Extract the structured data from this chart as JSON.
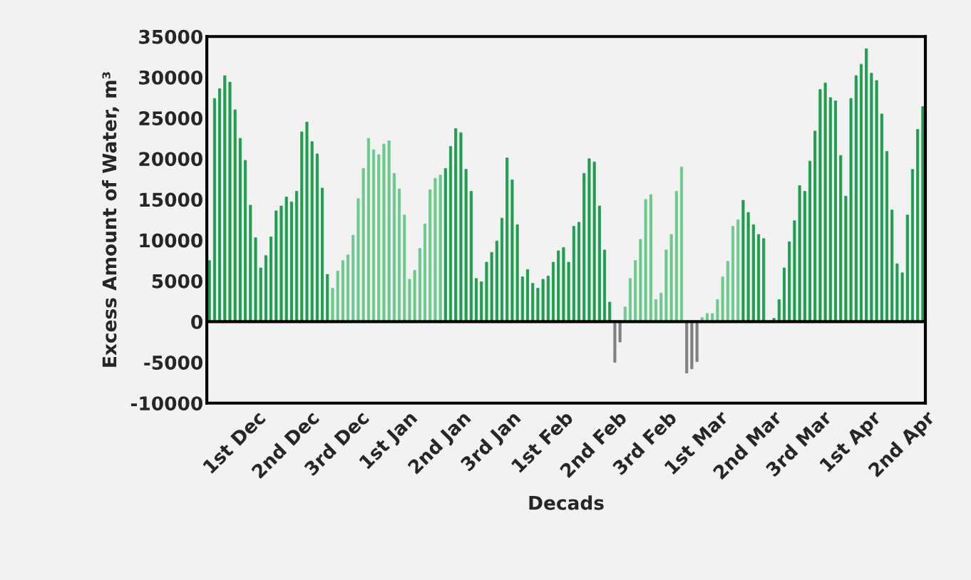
{
  "chart_data": {
    "type": "bar",
    "xlabel": "Decads",
    "ylabel": "Excess Amount of Water, m³",
    "categories": [
      null,
      null,
      null,
      null,
      null,
      "1st Dec",
      null,
      null,
      null,
      null,
      null,
      null,
      null,
      null,
      null,
      "2nd Dec",
      null,
      null,
      null,
      null,
      null,
      null,
      null,
      null,
      null,
      "3rd Dec",
      null,
      null,
      null,
      null,
      null,
      null,
      null,
      null,
      null,
      "1st Jan",
      null,
      null,
      null,
      null,
      null,
      null,
      null,
      null,
      null,
      "2nd Jan",
      null,
      null,
      null,
      null,
      null,
      null,
      null,
      null,
      null,
      "3rd Jan",
      null,
      null,
      null,
      null,
      null,
      null,
      null,
      null,
      null,
      "1st Feb",
      null,
      null,
      null,
      null,
      null,
      null,
      null,
      null,
      null,
      "2nd Feb",
      null,
      null,
      null,
      null,
      null,
      null,
      null,
      null,
      null,
      "3rd Feb",
      null,
      null,
      null,
      null,
      null,
      null,
      null,
      null,
      null,
      "1st Mar",
      null,
      null,
      null,
      null,
      null,
      null,
      null,
      null,
      null,
      "2nd Mar",
      null,
      null,
      null,
      null,
      null,
      null,
      null,
      null,
      null,
      "3rd Mar",
      null,
      null,
      null,
      null,
      null,
      null,
      null,
      null,
      null,
      "1st Apr",
      null,
      null,
      null,
      null,
      null,
      null,
      null,
      null,
      null,
      "2nd Apr",
      null,
      null,
      null,
      null
    ],
    "values": [
      7500,
      27400,
      28600,
      30200,
      29400,
      26000,
      22500,
      19800,
      14300,
      10300,
      6600,
      8100,
      10400,
      13600,
      14200,
      15300,
      14700,
      16000,
      23300,
      24500,
      22100,
      20600,
      16400,
      5800,
      4100,
      6200,
      7500,
      8200,
      10600,
      15100,
      18800,
      22500,
      21100,
      20500,
      21800,
      22200,
      18200,
      16300,
      13100,
      5200,
      6300,
      9000,
      12000,
      16200,
      17600,
      18000,
      18800,
      21500,
      23700,
      23200,
      18700,
      16000,
      5300,
      4900,
      7300,
      8500,
      9900,
      12700,
      20100,
      17400,
      11900,
      5500,
      6400,
      4700,
      4100,
      5200,
      5600,
      7300,
      8700,
      9100,
      7300,
      11700,
      12200,
      18200,
      20000,
      19600,
      14200,
      8800,
      2400,
      -5000,
      -2500,
      1800,
      5300,
      7500,
      10100,
      15000,
      15600,
      2700,
      3500,
      8800,
      10700,
      16000,
      19000,
      -6300,
      -5800,
      -4900,
      500,
      1000,
      1000,
      2700,
      5500,
      7400,
      11700,
      12500,
      14900,
      13400,
      11900,
      10700,
      10200,
      0,
      400,
      2700,
      6600,
      9800,
      12400,
      16700,
      16000,
      19700,
      23400,
      28500,
      29300,
      27500,
      27100,
      20400,
      15400,
      27400,
      30200,
      31600,
      33500,
      30500,
      29600,
      25500,
      20900,
      13700,
      7100,
      6000,
      13100,
      18700,
      23600,
      26400
    ],
    "colors": [
      "#1e9e4e",
      "#1e9e4e",
      "#1e9e4e",
      "#1e9e4e",
      "#1e9e4e",
      "#1e9e4e",
      "#1e9e4e",
      "#1e9e4e",
      "#1e9e4e",
      "#1e9e4e",
      "#1e9e4e",
      "#1e9e4e",
      "#1e9e4e",
      "#1e9e4e",
      "#1e9e4e",
      "#1e9e4e",
      "#1e9e4e",
      "#1e9e4e",
      "#1e9e4e",
      "#1e9e4e",
      "#1e9e4e",
      "#1e9e4e",
      "#1e9e4e",
      "#1e9e4e",
      "#6cc98c",
      "#6cc98c",
      "#6cc98c",
      "#6cc98c",
      "#6cc98c",
      "#6cc98c",
      "#6cc98c",
      "#6cc98c",
      "#6cc98c",
      "#6cc98c",
      "#6cc98c",
      "#6cc98c",
      "#6cc98c",
      "#6cc98c",
      "#6cc98c",
      "#6cc98c",
      "#6cc98c",
      "#6cc98c",
      "#6cc98c",
      "#6cc98c",
      "#6cc98c",
      "#6cc98c",
      "#1e9e4e",
      "#1e9e4e",
      "#1e9e4e",
      "#1e9e4e",
      "#1e9e4e",
      "#1e9e4e",
      "#1e9e4e",
      "#1e9e4e",
      "#1e9e4e",
      "#1e9e4e",
      "#1e9e4e",
      "#1e9e4e",
      "#1e9e4e",
      "#1e9e4e",
      "#1e9e4e",
      "#1e9e4e",
      "#1e9e4e",
      "#1e9e4e",
      "#1e9e4e",
      "#1e9e4e",
      "#1e9e4e",
      "#1e9e4e",
      "#1e9e4e",
      "#1e9e4e",
      "#1e9e4e",
      "#1e9e4e",
      "#1e9e4e",
      "#1e9e4e",
      "#1e9e4e",
      "#1e9e4e",
      "#1e9e4e",
      "#1e9e4e",
      "#1e9e4e",
      "#808080",
      "#808080",
      "#6cc98c",
      "#6cc98c",
      "#6cc98c",
      "#6cc98c",
      "#6cc98c",
      "#6cc98c",
      "#6cc98c",
      "#6cc98c",
      "#6cc98c",
      "#6cc98c",
      "#6cc98c",
      "#6cc98c",
      "#808080",
      "#808080",
      "#808080",
      "#6cc98c",
      "#6cc98c",
      "#6cc98c",
      "#6cc98c",
      "#6cc98c",
      "#6cc98c",
      "#6cc98c",
      "#6cc98c",
      "#1e9e4e",
      "#1e9e4e",
      "#1e9e4e",
      "#1e9e4e",
      "#1e9e4e",
      "#1e9e4e",
      "#1e9e4e",
      "#1e9e4e",
      "#1e9e4e",
      "#1e9e4e",
      "#1e9e4e",
      "#1e9e4e",
      "#1e9e4e",
      "#1e9e4e",
      "#1e9e4e",
      "#1e9e4e",
      "#1e9e4e",
      "#1e9e4e",
      "#1e9e4e",
      "#1e9e4e",
      "#1e9e4e",
      "#1e9e4e",
      "#1e9e4e",
      "#1e9e4e",
      "#1e9e4e",
      "#1e9e4e",
      "#1e9e4e",
      "#1e9e4e",
      "#1e9e4e",
      "#1e9e4e",
      "#1e9e4e",
      "#1e9e4e",
      "#1e9e4e",
      "#1e9e4e",
      "#1e9e4e",
      "#1e9e4e"
    ],
    "ylim": [
      -10000,
      35000
    ],
    "yticks": [
      -10000,
      -5000,
      0,
      5000,
      10000,
      15000,
      20000,
      25000,
      30000,
      35000
    ],
    "grid": false,
    "legend": false,
    "ref_lines": [
      {
        "axis": "y",
        "value": 0,
        "color": "#000000"
      }
    ]
  }
}
